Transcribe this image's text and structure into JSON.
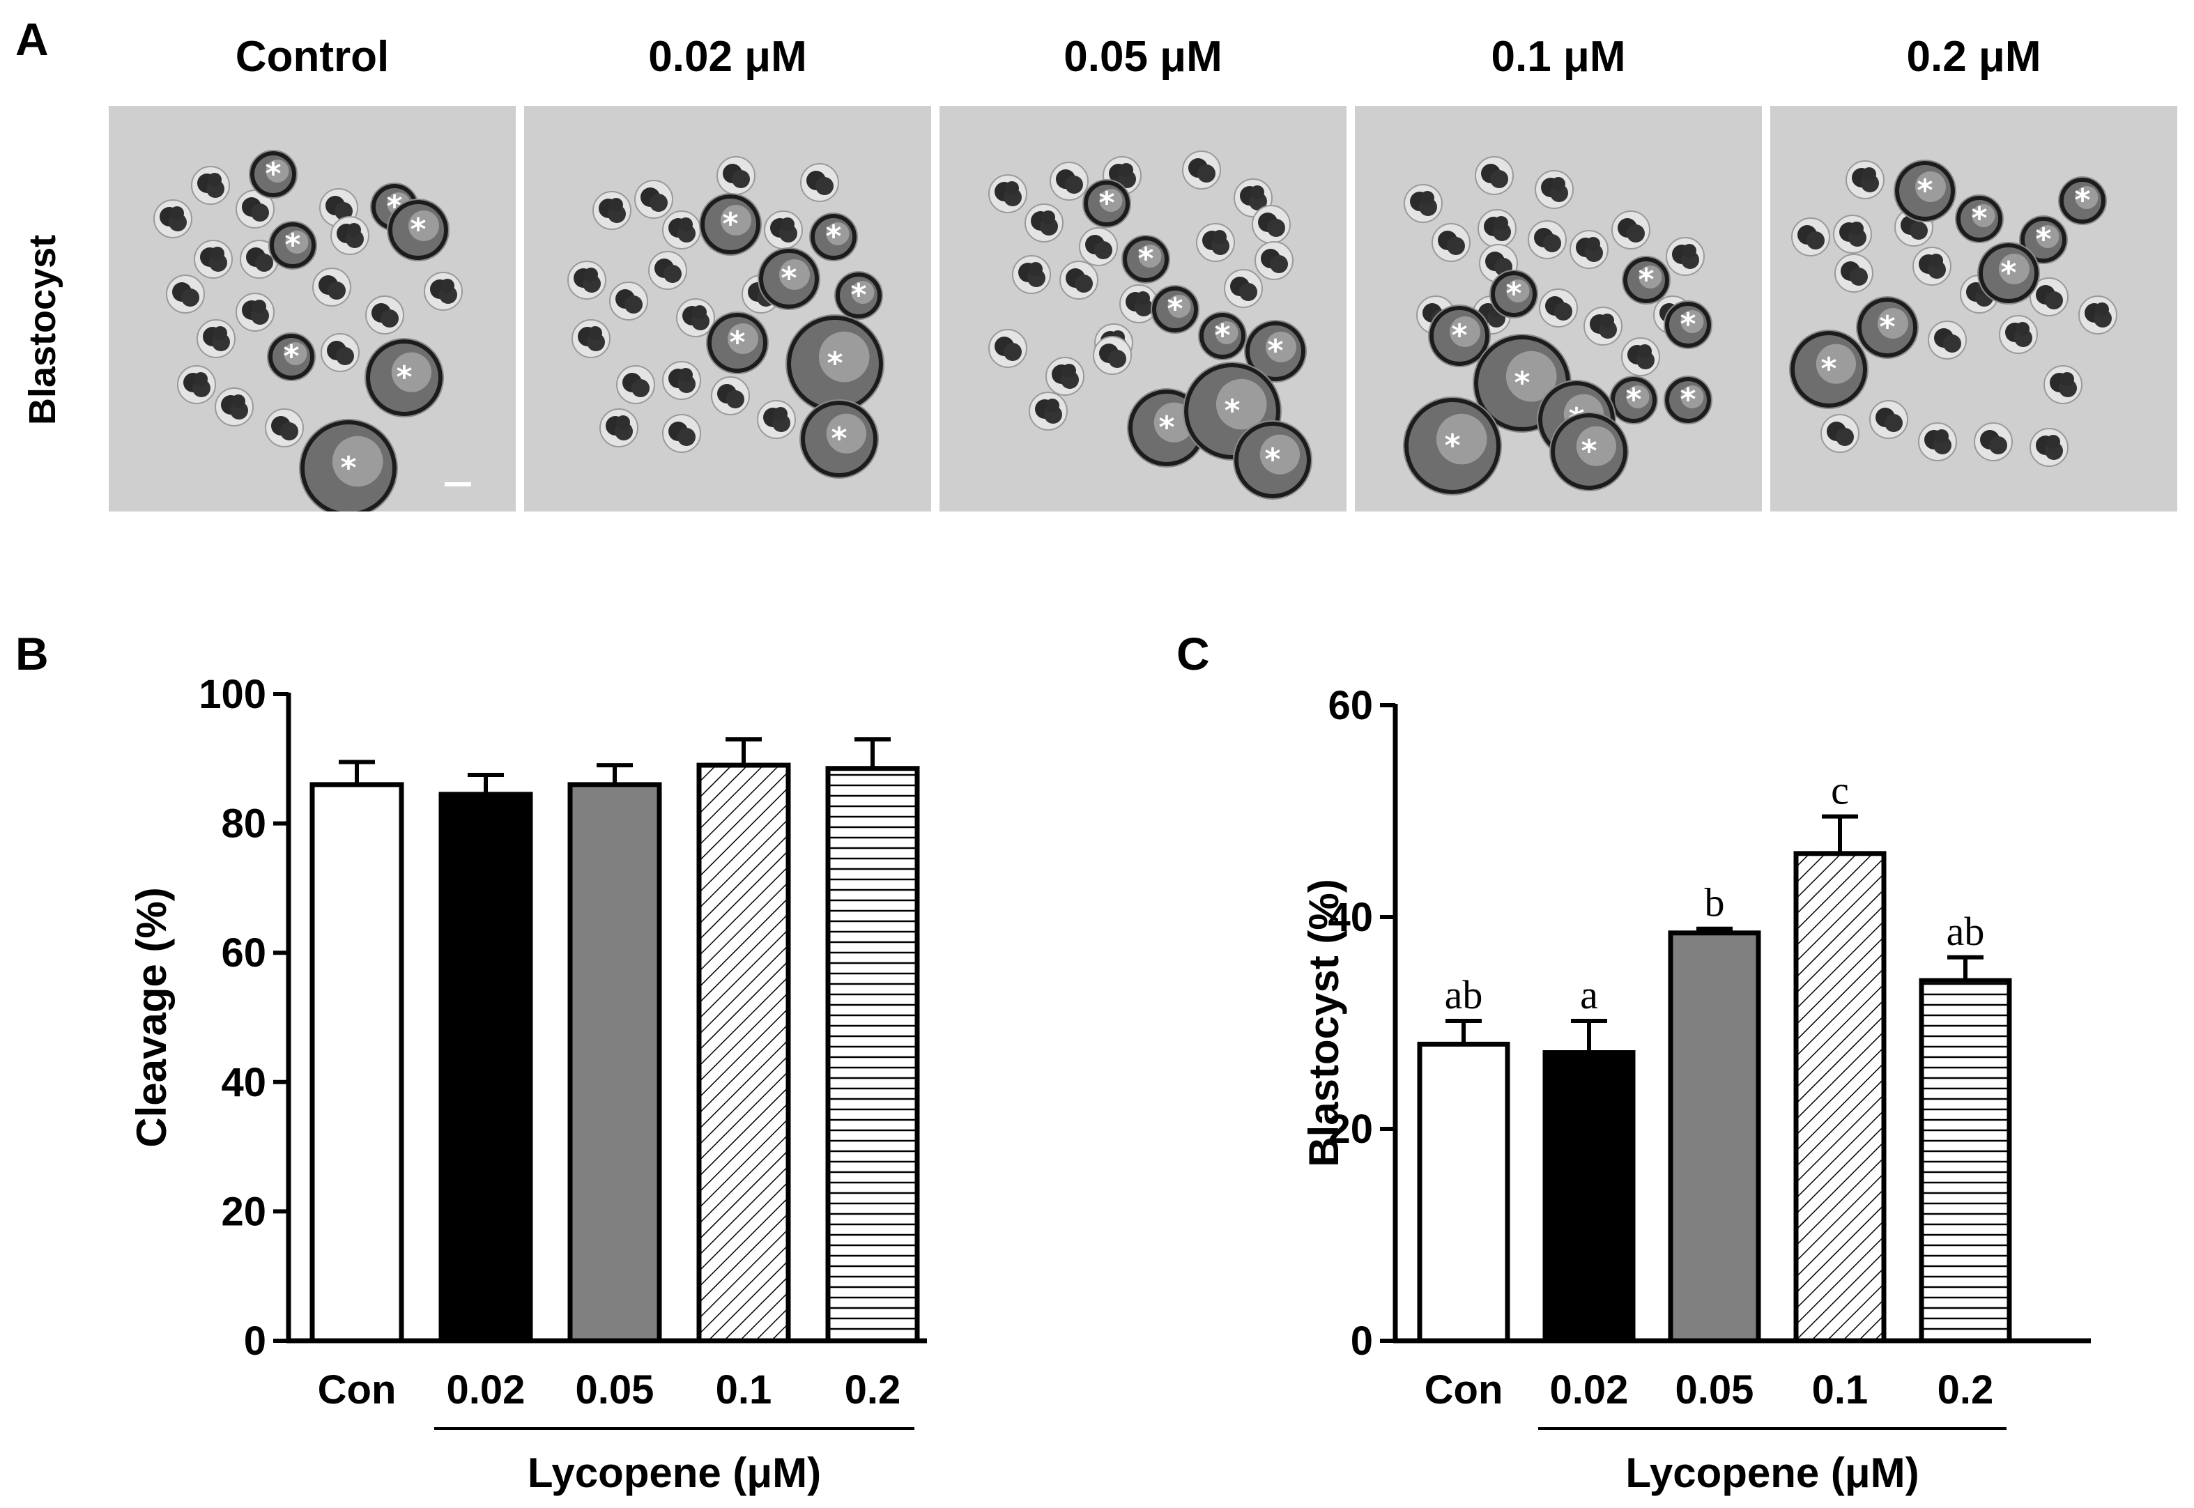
{
  "figure": {
    "panel_labels": {
      "a": "A",
      "b": "B",
      "c": "C"
    },
    "panel_a": {
      "row_label": "Blastocyst",
      "columns": [
        "Control",
        "0.02 μM",
        "0.05 μM",
        "0.1 μM",
        "0.2 μM"
      ],
      "blastocyst_marker": "*"
    }
  },
  "chart_data": [
    {
      "id": "B",
      "type": "bar",
      "title": "",
      "xlabel": "Lycopene (μM)",
      "ylabel": "Cleavage (%)",
      "ylim": [
        0,
        100
      ],
      "yticks": [
        0,
        20,
        40,
        60,
        80,
        100
      ],
      "categories": [
        "Con",
        "0.02",
        "0.05",
        "0.1",
        "0.2"
      ],
      "values": [
        86,
        84.5,
        86,
        89,
        88.5
      ],
      "errors": [
        3.5,
        3,
        3,
        4,
        4.5
      ],
      "fills": [
        "white",
        "black",
        "gray",
        "diagonal-hatch",
        "horizontal-hatch"
      ],
      "sig_labels": [],
      "bracket_from": 1,
      "colors": {
        "gray": "#808080",
        "black": "#000000"
      }
    },
    {
      "id": "C",
      "type": "bar",
      "title": "",
      "xlabel": "Lycopene (μM)",
      "ylabel": "Blastocyst (%)",
      "ylim": [
        0,
        60
      ],
      "yticks": [
        0,
        20,
        40,
        60
      ],
      "categories": [
        "Con",
        "0.02",
        "0.05",
        "0.1",
        "0.2"
      ],
      "values": [
        28,
        27.2,
        38.5,
        46,
        34
      ],
      "errors": [
        2.2,
        3,
        0.4,
        3.5,
        2.2
      ],
      "fills": [
        "white",
        "black",
        "gray",
        "diagonal-hatch",
        "horizontal-hatch"
      ],
      "sig_labels": [
        "ab",
        "a",
        "b",
        "c",
        "ab"
      ],
      "bracket_from": 1,
      "colors": {
        "gray": "#808080",
        "black": "#000000"
      }
    }
  ]
}
